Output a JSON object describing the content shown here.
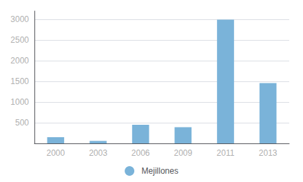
{
  "chart_data": {
    "type": "bar",
    "categories": [
      "2000",
      "2003",
      "2006",
      "2009",
      "2011",
      "2013"
    ],
    "series": [
      {
        "name": "Mejillones",
        "color": "#7ab3d9",
        "values": [
          150,
          60,
          450,
          390,
          2990,
          1460
        ]
      }
    ],
    "ylim": [
      0,
      3200
    ],
    "yticks": [
      500,
      1000,
      1500,
      2000,
      2500,
      3000
    ],
    "grid": true,
    "legend": "bottom"
  }
}
